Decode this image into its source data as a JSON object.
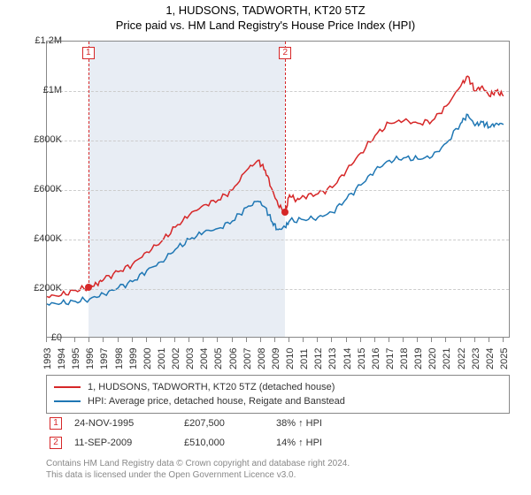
{
  "title": "1, HUDSONS, TADWORTH, KT20 5TZ",
  "subtitle": "Price paid vs. HM Land Registry's House Price Index (HPI)",
  "chart": {
    "type": "line",
    "background_color": "#ffffff",
    "shaded_band_color": "#e8edf4",
    "grid_color": "#cccccc",
    "border_color": "#888888",
    "y": {
      "min": 0,
      "max": 1200000,
      "ticks": [
        0,
        200000,
        400000,
        600000,
        800000,
        1000000,
        1200000
      ],
      "labels": [
        "£0",
        "£200K",
        "£400K",
        "£600K",
        "£800K",
        "£1M",
        "£1.2M"
      ],
      "label_fontsize": 11
    },
    "x": {
      "min": 1993,
      "max": 2025.5,
      "ticks": [
        1993,
        1994,
        1995,
        1996,
        1997,
        1998,
        1999,
        2000,
        2001,
        2002,
        2003,
        2004,
        2005,
        2006,
        2007,
        2008,
        2009,
        2010,
        2011,
        2012,
        2013,
        2014,
        2015,
        2016,
        2017,
        2018,
        2019,
        2020,
        2021,
        2022,
        2023,
        2024,
        2025
      ],
      "label_fontsize": 11
    },
    "series": [
      {
        "name": "1, HUDSONS, TADWORTH, KT20 5TZ (detached house)",
        "color": "#d62728",
        "line_width": 1.5,
        "data": [
          [
            1993,
            170000
          ],
          [
            1994,
            175000
          ],
          [
            1995,
            195000
          ],
          [
            1995.9,
            207500
          ],
          [
            1996.5,
            220000
          ],
          [
            1997,
            240000
          ],
          [
            1998,
            270000
          ],
          [
            1999,
            300000
          ],
          [
            2000,
            350000
          ],
          [
            2001,
            390000
          ],
          [
            2002,
            450000
          ],
          [
            2003,
            500000
          ],
          [
            2004,
            540000
          ],
          [
            2005,
            560000
          ],
          [
            2006,
            600000
          ],
          [
            2007,
            680000
          ],
          [
            2007.8,
            720000
          ],
          [
            2008.3,
            680000
          ],
          [
            2008.8,
            600000
          ],
          [
            2009.2,
            540000
          ],
          [
            2009.7,
            510000
          ],
          [
            2010,
            580000
          ],
          [
            2010.5,
            560000
          ],
          [
            2011,
            575000
          ],
          [
            2012,
            585000
          ],
          [
            2013,
            610000
          ],
          [
            2014,
            680000
          ],
          [
            2015,
            750000
          ],
          [
            2016,
            820000
          ],
          [
            2017,
            870000
          ],
          [
            2018,
            880000
          ],
          [
            2019,
            870000
          ],
          [
            2020,
            880000
          ],
          [
            2021,
            940000
          ],
          [
            2022,
            1020000
          ],
          [
            2022.5,
            1060000
          ],
          [
            2023,
            1000000
          ],
          [
            2023.5,
            1020000
          ],
          [
            2024,
            980000
          ],
          [
            2024.5,
            1000000
          ],
          [
            2025,
            980000
          ]
        ]
      },
      {
        "name": "HPI: Average price, detached house, Reigate and Banstead",
        "color": "#1f77b4",
        "line_width": 1.5,
        "data": [
          [
            1993,
            140000
          ],
          [
            1994,
            142000
          ],
          [
            1995,
            150000
          ],
          [
            1996,
            160000
          ],
          [
            1997,
            180000
          ],
          [
            1998,
            205000
          ],
          [
            1999,
            230000
          ],
          [
            2000,
            275000
          ],
          [
            2001,
            310000
          ],
          [
            2002,
            360000
          ],
          [
            2003,
            400000
          ],
          [
            2004,
            430000
          ],
          [
            2005,
            445000
          ],
          [
            2006,
            475000
          ],
          [
            2007,
            530000
          ],
          [
            2007.8,
            555000
          ],
          [
            2008.3,
            530000
          ],
          [
            2008.8,
            470000
          ],
          [
            2009.2,
            440000
          ],
          [
            2009.7,
            450000
          ],
          [
            2010,
            475000
          ],
          [
            2011,
            480000
          ],
          [
            2012,
            490000
          ],
          [
            2013,
            510000
          ],
          [
            2014,
            565000
          ],
          [
            2015,
            620000
          ],
          [
            2016,
            680000
          ],
          [
            2017,
            720000
          ],
          [
            2018,
            730000
          ],
          [
            2019,
            725000
          ],
          [
            2020,
            735000
          ],
          [
            2021,
            790000
          ],
          [
            2022,
            870000
          ],
          [
            2022.5,
            905000
          ],
          [
            2023,
            860000
          ],
          [
            2023.5,
            875000
          ],
          [
            2024,
            855000
          ],
          [
            2024.5,
            870000
          ],
          [
            2025,
            865000
          ]
        ]
      }
    ],
    "markers": [
      {
        "n": "1",
        "year": 1995.9,
        "dotY": 207500
      },
      {
        "n": "2",
        "year": 2009.7,
        "dotY": 510000
      }
    ]
  },
  "legend": [
    {
      "color": "#d62728",
      "label": "1, HUDSONS, TADWORTH, KT20 5TZ (detached house)"
    },
    {
      "color": "#1f77b4",
      "label": "HPI: Average price, detached house, Reigate and Banstead"
    }
  ],
  "transactions": [
    {
      "n": "1",
      "date": "24-NOV-1995",
      "price": "£207,500",
      "pct": "38% ↑ HPI"
    },
    {
      "n": "2",
      "date": "11-SEP-2009",
      "price": "£510,000",
      "pct": "14% ↑ HPI"
    }
  ],
  "footer": {
    "line1": "Contains HM Land Registry data © Crown copyright and database right 2024.",
    "line2": "This data is licensed under the Open Government Licence v3.0."
  }
}
